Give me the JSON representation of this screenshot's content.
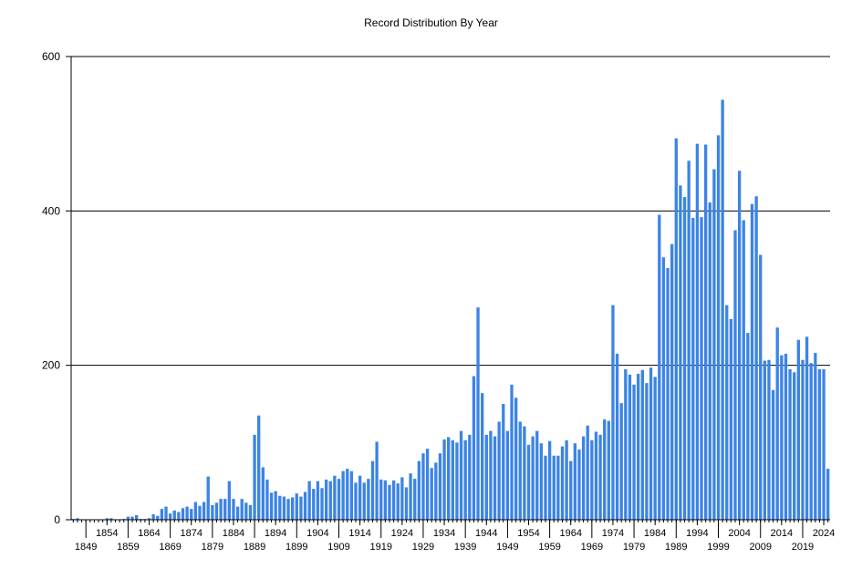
{
  "chart_data": {
    "type": "bar",
    "title": "Record Distribution By Year",
    "xlabel": "",
    "ylabel": "",
    "ylim": [
      0,
      600
    ],
    "yticks": [
      0,
      200,
      400,
      600
    ],
    "grid": "horizontal",
    "legend": "none",
    "bar_color": "#3C84E5",
    "x_start": 1846,
    "x_end": 2025,
    "xticks_upper": [
      "1854",
      "1864",
      "1874",
      "1884",
      "1894",
      "1904",
      "1914",
      "1924",
      "1934",
      "1944",
      "1954",
      "1964",
      "1974",
      "1984",
      "1994",
      "2004",
      "2014",
      "2024"
    ],
    "xticks_lower": [
      "1849",
      "1859",
      "1869",
      "1879",
      "1889",
      "1899",
      "1909",
      "1919",
      "1929",
      "1939",
      "1949",
      "1959",
      "1969",
      "1979",
      "1989",
      "1999",
      "2009",
      "2019"
    ],
    "years": [
      1846,
      1847,
      1848,
      1849,
      1850,
      1851,
      1852,
      1853,
      1854,
      1855,
      1856,
      1857,
      1858,
      1859,
      1860,
      1861,
      1862,
      1863,
      1864,
      1865,
      1866,
      1867,
      1868,
      1869,
      1870,
      1871,
      1872,
      1873,
      1874,
      1875,
      1876,
      1877,
      1878,
      1879,
      1880,
      1881,
      1882,
      1883,
      1884,
      1885,
      1886,
      1887,
      1888,
      1889,
      1890,
      1891,
      1892,
      1893,
      1894,
      1895,
      1896,
      1897,
      1898,
      1899,
      1900,
      1901,
      1902,
      1903,
      1904,
      1905,
      1906,
      1907,
      1908,
      1909,
      1910,
      1911,
      1912,
      1913,
      1914,
      1915,
      1916,
      1917,
      1918,
      1919,
      1920,
      1921,
      1922,
      1923,
      1924,
      1925,
      1926,
      1927,
      1928,
      1929,
      1930,
      1931,
      1932,
      1933,
      1934,
      1935,
      1936,
      1937,
      1938,
      1939,
      1940,
      1941,
      1942,
      1943,
      1944,
      1945,
      1946,
      1947,
      1948,
      1949,
      1950,
      1951,
      1952,
      1953,
      1954,
      1955,
      1956,
      1957,
      1958,
      1959,
      1960,
      1961,
      1962,
      1963,
      1964,
      1965,
      1966,
      1967,
      1968,
      1969,
      1970,
      1971,
      1972,
      1973,
      1974,
      1975,
      1976,
      1977,
      1978,
      1979,
      1980,
      1981,
      1982,
      1983,
      1984,
      1985,
      1986,
      1987,
      1988,
      1989,
      1990,
      1991,
      1992,
      1993,
      1994,
      1995,
      1996,
      1997,
      1998,
      1999,
      2000,
      2001,
      2002,
      2003,
      2004,
      2005,
      2006,
      2007,
      2008,
      2009,
      2010,
      2011,
      2012,
      2013,
      2014,
      2015,
      2016,
      2017,
      2018,
      2019,
      2020,
      2021,
      2022,
      2023,
      2024,
      2025
    ],
    "values": [
      1,
      2,
      0,
      0,
      0,
      0,
      0,
      0,
      2,
      2,
      0,
      0,
      1,
      4,
      4,
      6,
      1,
      1,
      2,
      7,
      5,
      14,
      17,
      8,
      12,
      10,
      15,
      17,
      14,
      23,
      18,
      23,
      56,
      19,
      22,
      27,
      27,
      50,
      27,
      17,
      27,
      22,
      19,
      110,
      135,
      68,
      52,
      35,
      37,
      31,
      30,
      27,
      29,
      34,
      30,
      36,
      50,
      40,
      50,
      41,
      52,
      50,
      57,
      53,
      63,
      66,
      63,
      48,
      57,
      48,
      53,
      76,
      101,
      52,
      51,
      45,
      51,
      47,
      55,
      42,
      60,
      53,
      76,
      86,
      92,
      67,
      74,
      86,
      104,
      107,
      103,
      100,
      115,
      103,
      110,
      186,
      275,
      164,
      110,
      115,
      108,
      127,
      150,
      115,
      175,
      158,
      127,
      121,
      97,
      108,
      115,
      99,
      83,
      102,
      83,
      83,
      95,
      103,
      76,
      99,
      91,
      108,
      122,
      103,
      114,
      110,
      130,
      128,
      278,
      215,
      151,
      195,
      188,
      175,
      189,
      194,
      177,
      197,
      185,
      395,
      340,
      326,
      357,
      494,
      433,
      418,
      465,
      391,
      487,
      392,
      486,
      411,
      454,
      498,
      544,
      278,
      260,
      375,
      452,
      388,
      242,
      409,
      419,
      343,
      206,
      207,
      168,
      249,
      213,
      215,
      195,
      191,
      233,
      207,
      237,
      203,
      216,
      195,
      195,
      66
    ]
  }
}
